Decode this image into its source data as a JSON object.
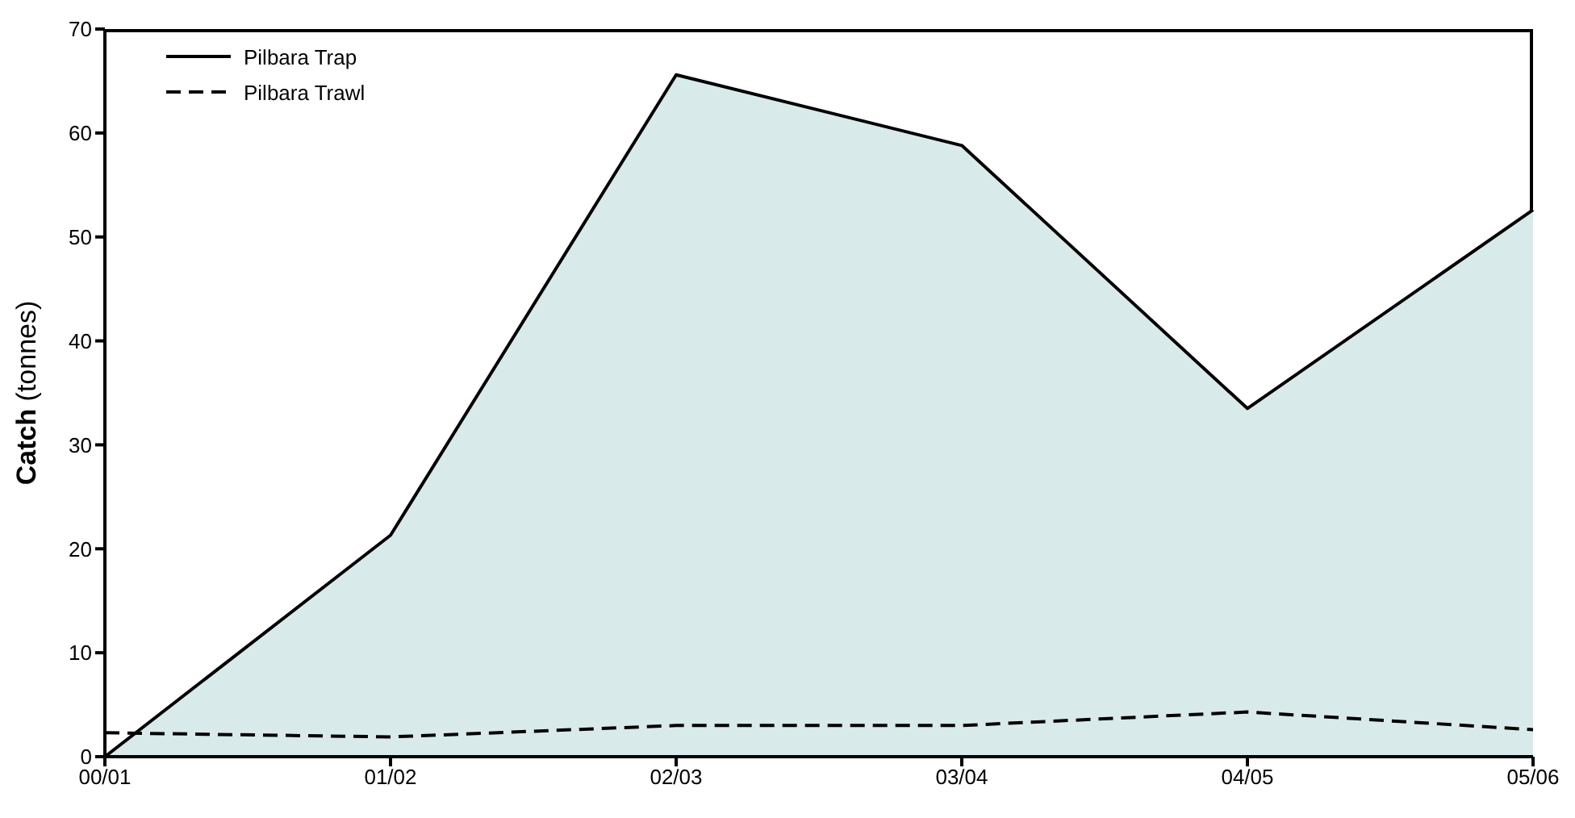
{
  "chart_data": {
    "type": "area",
    "ylabel": "Catch (tonnes)",
    "categories": [
      "00/01",
      "01/02",
      "02/03",
      "03/04",
      "04/05",
      "05/06"
    ],
    "series": [
      {
        "name": "Pilbara Trap",
        "color": "#d8eae9",
        "line_style": "solid",
        "values": [
          0,
          21.3,
          65.6,
          58.8,
          33.5,
          52.6
        ]
      },
      {
        "name": "Pilbara Trawl",
        "type": "line",
        "color": "#000000",
        "line_style": "dashed",
        "values": [
          2.3,
          1.9,
          3.0,
          3.0,
          4.3,
          2.6
        ]
      }
    ],
    "ylim": [
      0,
      70
    ],
    "yticks": [
      0,
      10,
      20,
      30,
      40,
      50,
      60,
      70
    ],
    "grid": false,
    "legend": "top left",
    "marker": "none"
  }
}
